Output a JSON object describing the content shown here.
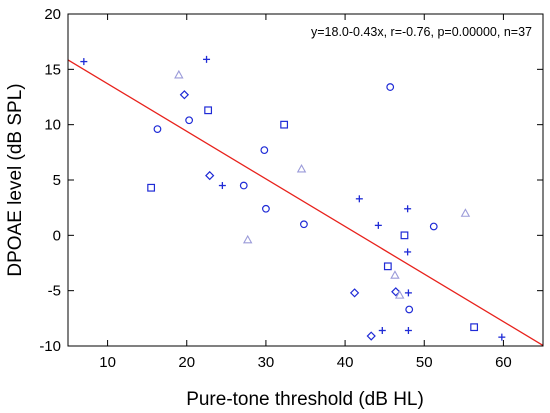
{
  "chart_data": {
    "type": "scatter",
    "title": "",
    "xlabel": "Pure-tone threshold (dB HL)",
    "ylabel": "DPOAE level (dB SPL)",
    "xlim": [
      5,
      65
    ],
    "ylim": [
      -10,
      20
    ],
    "x_ticks": [
      10,
      20,
      30,
      40,
      50,
      60
    ],
    "y_ticks": [
      -10,
      -5,
      0,
      5,
      10,
      15,
      20
    ],
    "grid": false,
    "legend": "none",
    "annotation": "y=18.0-0.43x, r=-0.76, p=0.00000, n=37",
    "regression": {
      "intercept": 18.0,
      "slope": -0.43,
      "color": "#e8221c"
    },
    "marker_color": "#1f2bd6",
    "triangle_color": "#9b9bd9",
    "points": [
      {
        "marker": "plus",
        "x": 7,
        "y": 15.7
      },
      {
        "marker": "plus",
        "x": 22.5,
        "y": 15.9
      },
      {
        "marker": "triangle",
        "x": 19,
        "y": 14.5
      },
      {
        "marker": "diamond",
        "x": 19.7,
        "y": 12.7
      },
      {
        "marker": "square",
        "x": 22.7,
        "y": 11.3
      },
      {
        "marker": "circle",
        "x": 20.3,
        "y": 10.4
      },
      {
        "marker": "circle",
        "x": 16.3,
        "y": 9.6
      },
      {
        "marker": "square",
        "x": 32.3,
        "y": 10.0
      },
      {
        "marker": "circle",
        "x": 29.8,
        "y": 7.7
      },
      {
        "marker": "triangle",
        "x": 34.5,
        "y": 6.0
      },
      {
        "marker": "diamond",
        "x": 22.9,
        "y": 5.4
      },
      {
        "marker": "square",
        "x": 15.5,
        "y": 4.3
      },
      {
        "marker": "plus",
        "x": 24.5,
        "y": 4.5
      },
      {
        "marker": "circle",
        "x": 27.2,
        "y": 4.5
      },
      {
        "marker": "circle",
        "x": 30.0,
        "y": 2.4
      },
      {
        "marker": "circle",
        "x": 34.8,
        "y": 1.0
      },
      {
        "marker": "triangle",
        "x": 27.7,
        "y": -0.4
      },
      {
        "marker": "circle",
        "x": 45.7,
        "y": 13.4
      },
      {
        "marker": "plus",
        "x": 41.8,
        "y": 3.3
      },
      {
        "marker": "plus",
        "x": 47.9,
        "y": 2.4
      },
      {
        "marker": "triangle",
        "x": 55.2,
        "y": 2.0
      },
      {
        "marker": "plus",
        "x": 44.2,
        "y": 0.9
      },
      {
        "marker": "circle",
        "x": 51.2,
        "y": 0.8
      },
      {
        "marker": "square",
        "x": 47.5,
        "y": 0.0
      },
      {
        "marker": "plus",
        "x": 47.9,
        "y": -1.5
      },
      {
        "marker": "square",
        "x": 45.4,
        "y": -2.8
      },
      {
        "marker": "triangle",
        "x": 46.3,
        "y": -3.6
      },
      {
        "marker": "diamond",
        "x": 41.2,
        "y": -5.2
      },
      {
        "marker": "diamond",
        "x": 46.4,
        "y": -5.1
      },
      {
        "marker": "triangle",
        "x": 46.9,
        "y": -5.4
      },
      {
        "marker": "plus",
        "x": 48.0,
        "y": -5.2
      },
      {
        "marker": "circle",
        "x": 48.1,
        "y": -6.7
      },
      {
        "marker": "square",
        "x": 56.3,
        "y": -8.3
      },
      {
        "marker": "plus",
        "x": 44.7,
        "y": -8.6
      },
      {
        "marker": "plus",
        "x": 48.0,
        "y": -8.6
      },
      {
        "marker": "diamond",
        "x": 43.3,
        "y": -9.1
      },
      {
        "marker": "plus",
        "x": 59.8,
        "y": -9.2
      }
    ]
  }
}
